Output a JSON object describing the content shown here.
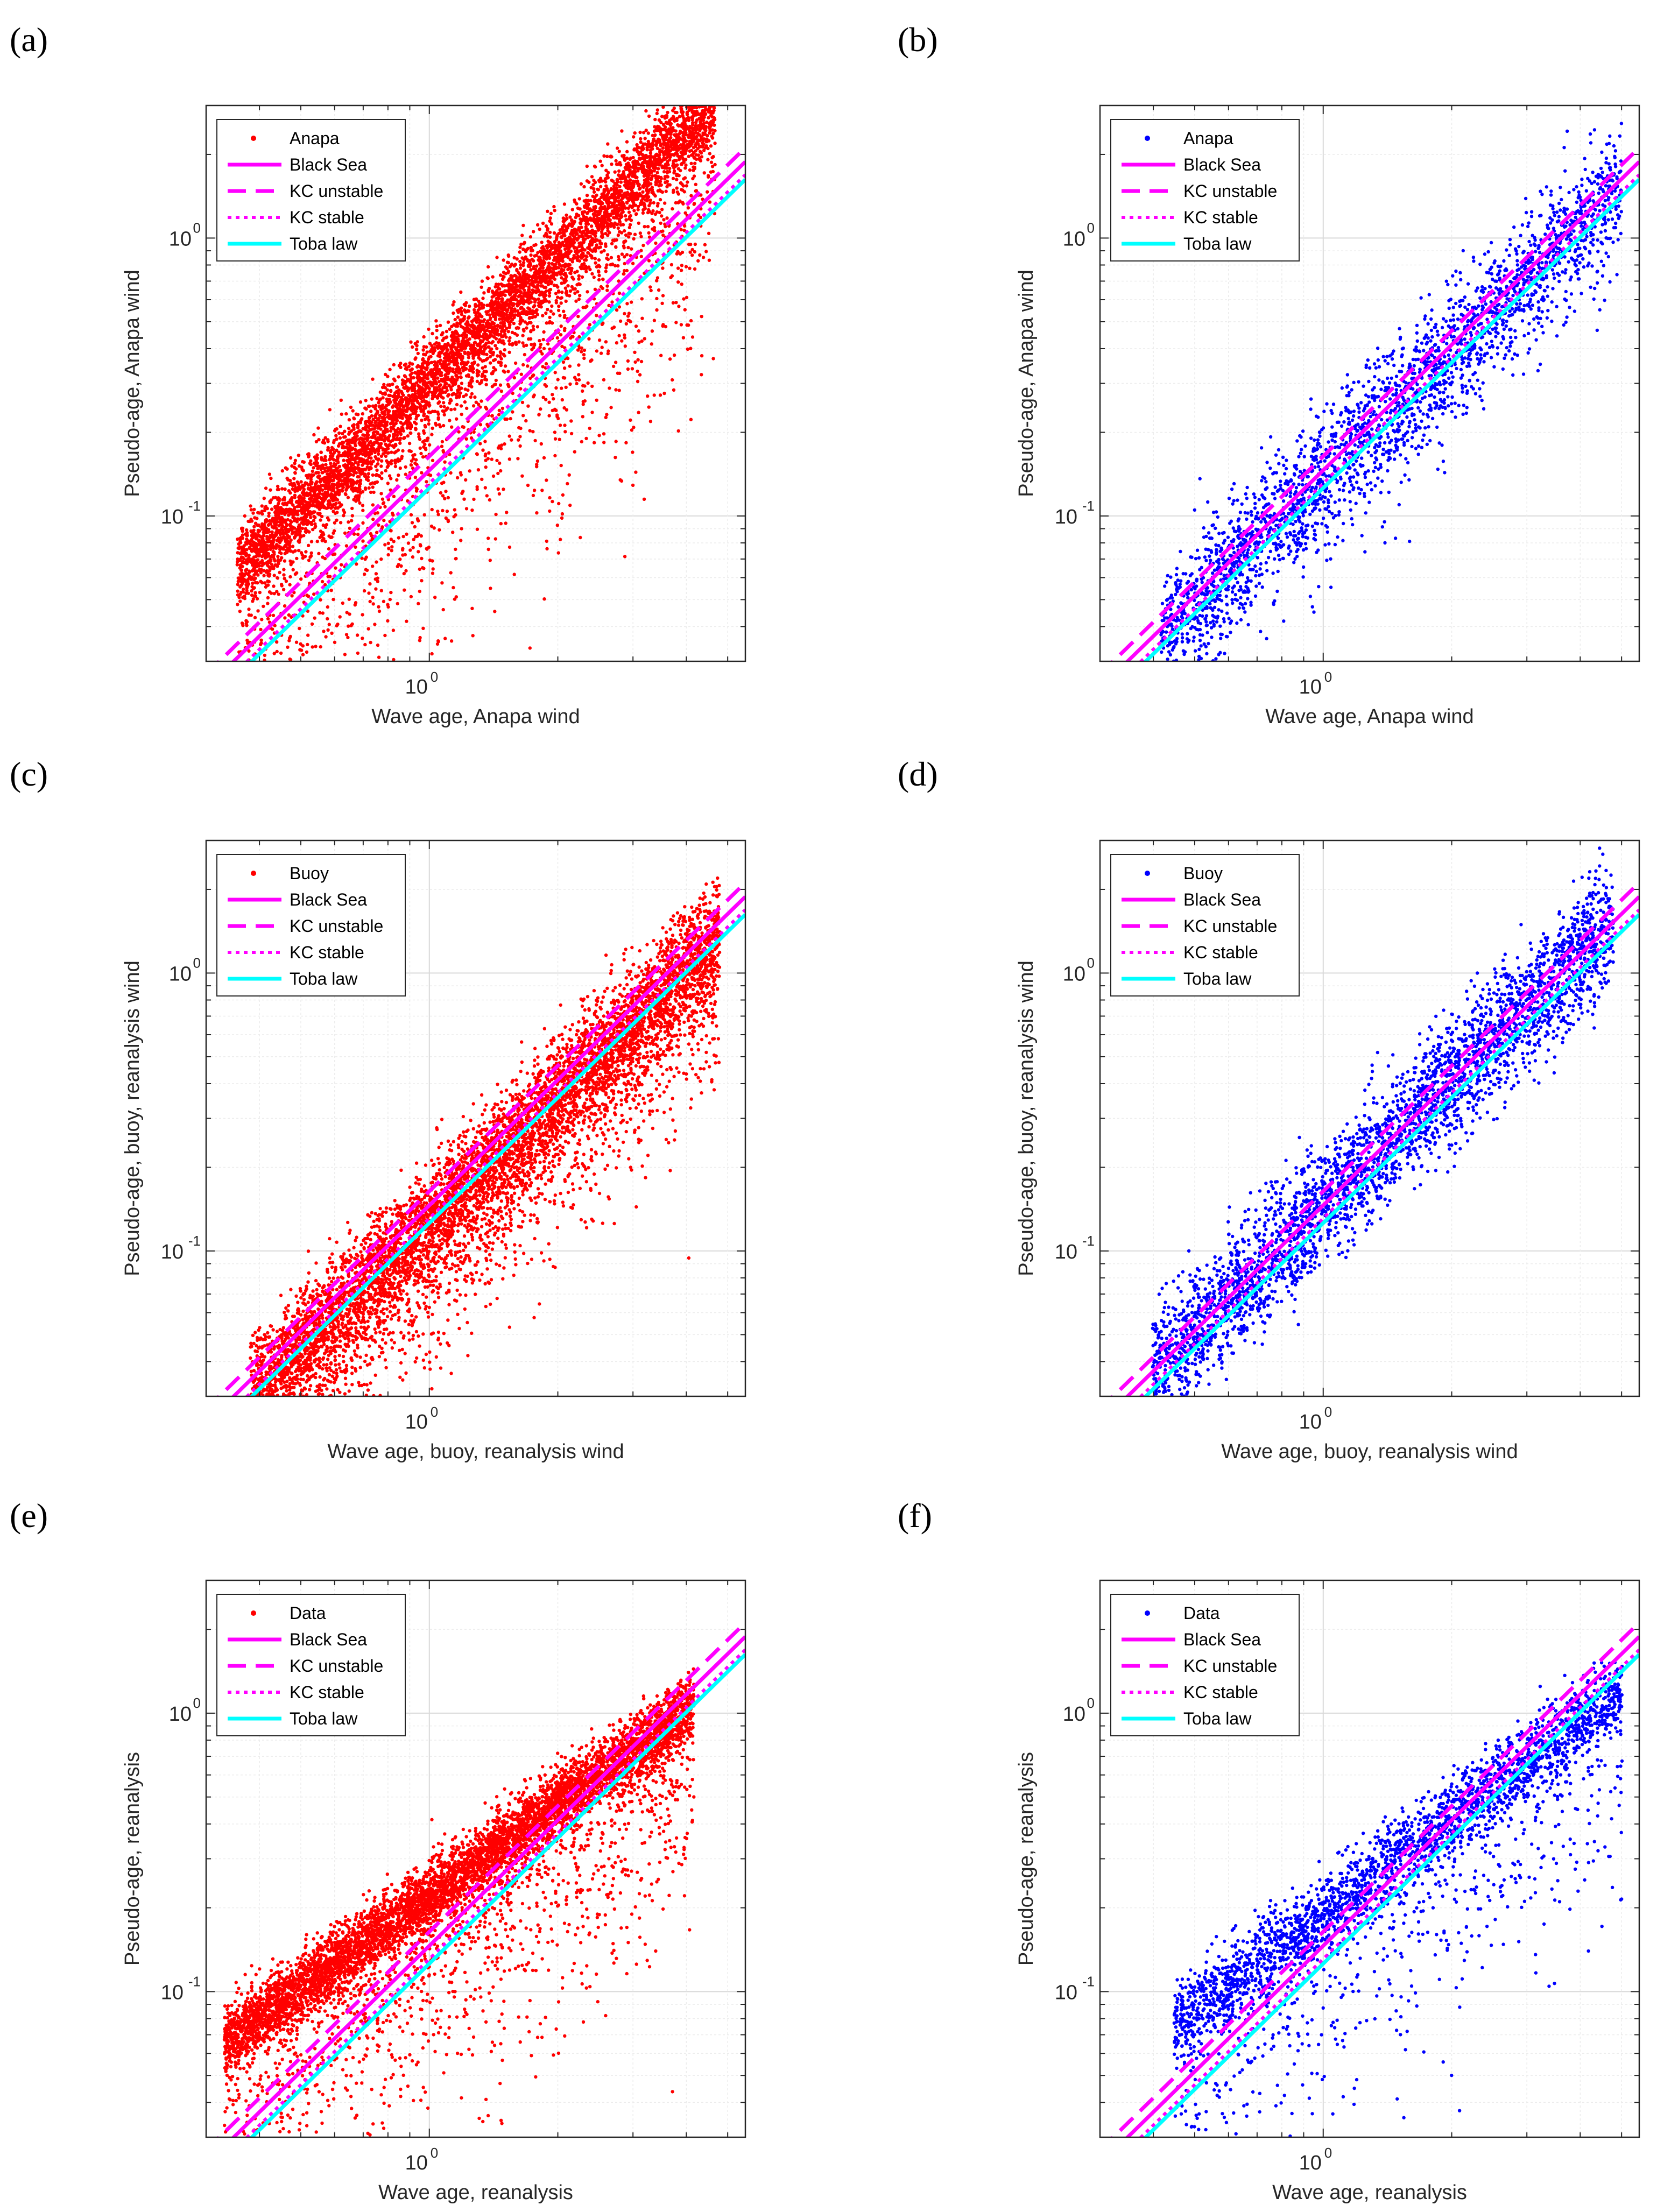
{
  "figure": {
    "panels": [
      {
        "id": "a",
        "letter": "(a)",
        "color": "#ff0000",
        "dataset": "anapa_red"
      },
      {
        "id": "b",
        "letter": "(b)",
        "color": "#0000ff",
        "dataset": "anapa_blue"
      },
      {
        "id": "c",
        "letter": "(c)",
        "color": "#ff0000",
        "dataset": "buoy_red"
      },
      {
        "id": "d",
        "letter": "(d)",
        "color": "#0000ff",
        "dataset": "buoy_blue"
      },
      {
        "id": "e",
        "letter": "(e)",
        "color": "#ff0000",
        "dataset": "rean_red"
      },
      {
        "id": "f",
        "letter": "(f)",
        "color": "#0000ff",
        "dataset": "rean_blue"
      }
    ]
  },
  "chart_data": [
    {
      "panel": "a",
      "type": "scatter",
      "title": "",
      "xlabel": "Wave age, Anapa wind",
      "ylabel": "Pseudo-age, Anapa wind",
      "xscale": "log",
      "yscale": "log",
      "xlim": [
        0.3,
        5.5
      ],
      "ylim": [
        0.03,
        3.0
      ],
      "xticks": [
        {
          "base": "10",
          "exp": "0",
          "value": 1
        }
      ],
      "yticks": [
        {
          "base": "10",
          "exp": "-1",
          "value": 0.1
        },
        {
          "base": "10",
          "exp": "0",
          "value": 1
        }
      ],
      "grid": true,
      "legend_position": "top-left",
      "series": [
        {
          "name": "Anapa",
          "kind": "points",
          "color": "#ff0000",
          "n_points": 7000,
          "relation": "y ≈ 0.30·x^1.5 (log-scatter, lower tail to 0.03)"
        },
        {
          "name": "Black Sea",
          "kind": "line",
          "style": "solid",
          "color": "#ff00ff",
          "a": 0.146,
          "b": 1.5
        },
        {
          "name": "KC unstable",
          "kind": "line",
          "style": "dashed",
          "color": "#ff00ff",
          "a": 0.164,
          "b": 1.5
        },
        {
          "name": "KC stable",
          "kind": "line",
          "style": "dotted",
          "color": "#ff00ff",
          "a": 0.131,
          "b": 1.5
        },
        {
          "name": "Toba law",
          "kind": "line",
          "style": "solid",
          "color": "#00ffff",
          "a": 0.126,
          "b": 1.5
        }
      ]
    },
    {
      "panel": "b",
      "type": "scatter",
      "title": "",
      "xlabel": "Wave age, Anapa wind",
      "ylabel": "Pseudo-age, Anapa wind",
      "xscale": "log",
      "yscale": "log",
      "xlim": [
        0.3,
        5.5
      ],
      "ylim": [
        0.03,
        3.0
      ],
      "xticks": [
        {
          "base": "10",
          "exp": "0",
          "value": 1
        }
      ],
      "yticks": [
        {
          "base": "10",
          "exp": "-1",
          "value": 0.1
        },
        {
          "base": "10",
          "exp": "0",
          "value": 1
        }
      ],
      "grid": true,
      "legend_position": "top-left",
      "series": [
        {
          "name": "Anapa",
          "kind": "points",
          "color": "#0000ff",
          "n_points": 2600,
          "relation": "y ≈ 0.14·x^1.5 (log-scatter)"
        },
        {
          "name": "Black Sea",
          "kind": "line",
          "style": "solid",
          "color": "#ff00ff",
          "a": 0.146,
          "b": 1.5
        },
        {
          "name": "KC unstable",
          "kind": "line",
          "style": "dashed",
          "color": "#ff00ff",
          "a": 0.164,
          "b": 1.5
        },
        {
          "name": "KC stable",
          "kind": "line",
          "style": "dotted",
          "color": "#ff00ff",
          "a": 0.131,
          "b": 1.5
        },
        {
          "name": "Toba law",
          "kind": "line",
          "style": "solid",
          "color": "#00ffff",
          "a": 0.126,
          "b": 1.5
        }
      ]
    },
    {
      "panel": "c",
      "type": "scatter",
      "title": "",
      "xlabel": "Wave age, buoy, reanalysis wind",
      "ylabel": "Pseudo-age, buoy, reanalysis wind",
      "xscale": "log",
      "yscale": "log",
      "xlim": [
        0.3,
        5.5
      ],
      "ylim": [
        0.03,
        3.0
      ],
      "xticks": [
        {
          "base": "10",
          "exp": "0",
          "value": 1
        }
      ],
      "yticks": [
        {
          "base": "10",
          "exp": "-1",
          "value": 0.1
        },
        {
          "base": "10",
          "exp": "0",
          "value": 1
        }
      ],
      "grid": true,
      "legend_position": "top-left",
      "series": [
        {
          "name": "Buoy",
          "kind": "points",
          "color": "#ff0000",
          "n_points": 7000,
          "relation": "y ≈ 0.13·x^1.5 (log-scatter)"
        },
        {
          "name": "Black Sea",
          "kind": "line",
          "style": "solid",
          "color": "#ff00ff",
          "a": 0.146,
          "b": 1.5
        },
        {
          "name": "KC unstable",
          "kind": "line",
          "style": "dashed",
          "color": "#ff00ff",
          "a": 0.164,
          "b": 1.5
        },
        {
          "name": "KC stable",
          "kind": "line",
          "style": "dotted",
          "color": "#ff00ff",
          "a": 0.131,
          "b": 1.5
        },
        {
          "name": "Toba law",
          "kind": "line",
          "style": "solid",
          "color": "#00ffff",
          "a": 0.126,
          "b": 1.5
        }
      ]
    },
    {
      "panel": "d",
      "type": "scatter",
      "title": "",
      "xlabel": "Wave age, buoy, reanalysis wind",
      "ylabel": "Pseudo-age, buoy, reanalysis wind",
      "xscale": "log",
      "yscale": "log",
      "xlim": [
        0.3,
        5.5
      ],
      "ylim": [
        0.03,
        3.0
      ],
      "xticks": [
        {
          "base": "10",
          "exp": "0",
          "value": 1
        }
      ],
      "yticks": [
        {
          "base": "10",
          "exp": "-1",
          "value": 0.1
        },
        {
          "base": "10",
          "exp": "0",
          "value": 1
        }
      ],
      "grid": true,
      "legend_position": "top-left",
      "series": [
        {
          "name": "Buoy",
          "kind": "points",
          "color": "#0000ff",
          "n_points": 3200,
          "relation": "y ≈ 0.145·x^1.5 (log-scatter)"
        },
        {
          "name": "Black Sea",
          "kind": "line",
          "style": "solid",
          "color": "#ff00ff",
          "a": 0.146,
          "b": 1.5
        },
        {
          "name": "KC unstable",
          "kind": "line",
          "style": "dashed",
          "color": "#ff00ff",
          "a": 0.164,
          "b": 1.5
        },
        {
          "name": "KC stable",
          "kind": "line",
          "style": "dotted",
          "color": "#ff00ff",
          "a": 0.131,
          "b": 1.5
        },
        {
          "name": "Toba law",
          "kind": "line",
          "style": "solid",
          "color": "#00ffff",
          "a": 0.126,
          "b": 1.5
        }
      ]
    },
    {
      "panel": "e",
      "type": "scatter",
      "title": "",
      "xlabel": "Wave age, reanalysis",
      "ylabel": "Pseudo-age, reanalysis",
      "xscale": "log",
      "yscale": "log",
      "xlim": [
        0.3,
        5.5
      ],
      "ylim": [
        0.03,
        3.0
      ],
      "xticks": [
        {
          "base": "10",
          "exp": "0",
          "value": 1
        }
      ],
      "yticks": [
        {
          "base": "10",
          "exp": "-1",
          "value": 0.1
        },
        {
          "base": "10",
          "exp": "0",
          "value": 1
        }
      ],
      "grid": true,
      "legend_position": "top-left",
      "series": [
        {
          "name": "Data",
          "kind": "points",
          "color": "#ff0000",
          "n_points": 7000,
          "relation": "y ≈ 0.22·x^1.1 (tight band, lower tail)"
        },
        {
          "name": "Black Sea",
          "kind": "line",
          "style": "solid",
          "color": "#ff00ff",
          "a": 0.146,
          "b": 1.5
        },
        {
          "name": "KC unstable",
          "kind": "line",
          "style": "dashed",
          "color": "#ff00ff",
          "a": 0.164,
          "b": 1.5
        },
        {
          "name": "KC stable",
          "kind": "line",
          "style": "dotted",
          "color": "#ff00ff",
          "a": 0.131,
          "b": 1.5
        },
        {
          "name": "Toba law",
          "kind": "line",
          "style": "solid",
          "color": "#00ffff",
          "a": 0.126,
          "b": 1.5
        }
      ]
    },
    {
      "panel": "f",
      "type": "scatter",
      "title": "",
      "xlabel": "Wave age, reanalysis",
      "ylabel": "Pseudo-age, reanalysis",
      "xscale": "log",
      "yscale": "log",
      "xlim": [
        0.3,
        5.5
      ],
      "ylim": [
        0.03,
        3.0
      ],
      "xticks": [
        {
          "base": "10",
          "exp": "0",
          "value": 1
        }
      ],
      "yticks": [
        {
          "base": "10",
          "exp": "-1",
          "value": 0.1
        },
        {
          "base": "10",
          "exp": "0",
          "value": 1
        }
      ],
      "grid": true,
      "legend_position": "top-left",
      "series": [
        {
          "name": "Data",
          "kind": "points",
          "color": "#0000ff",
          "n_points": 3000,
          "relation": "y ≈ 0.19·x^1.15 (tight band, lower tail)"
        },
        {
          "name": "Black Sea",
          "kind": "line",
          "style": "solid",
          "color": "#ff00ff",
          "a": 0.146,
          "b": 1.5
        },
        {
          "name": "KC unstable",
          "kind": "line",
          "style": "dashed",
          "color": "#ff00ff",
          "a": 0.164,
          "b": 1.5
        },
        {
          "name": "KC stable",
          "kind": "line",
          "style": "dotted",
          "color": "#ff00ff",
          "a": 0.131,
          "b": 1.5
        },
        {
          "name": "Toba law",
          "kind": "line",
          "style": "solid",
          "color": "#00ffff",
          "a": 0.126,
          "b": 1.5
        }
      ]
    }
  ]
}
